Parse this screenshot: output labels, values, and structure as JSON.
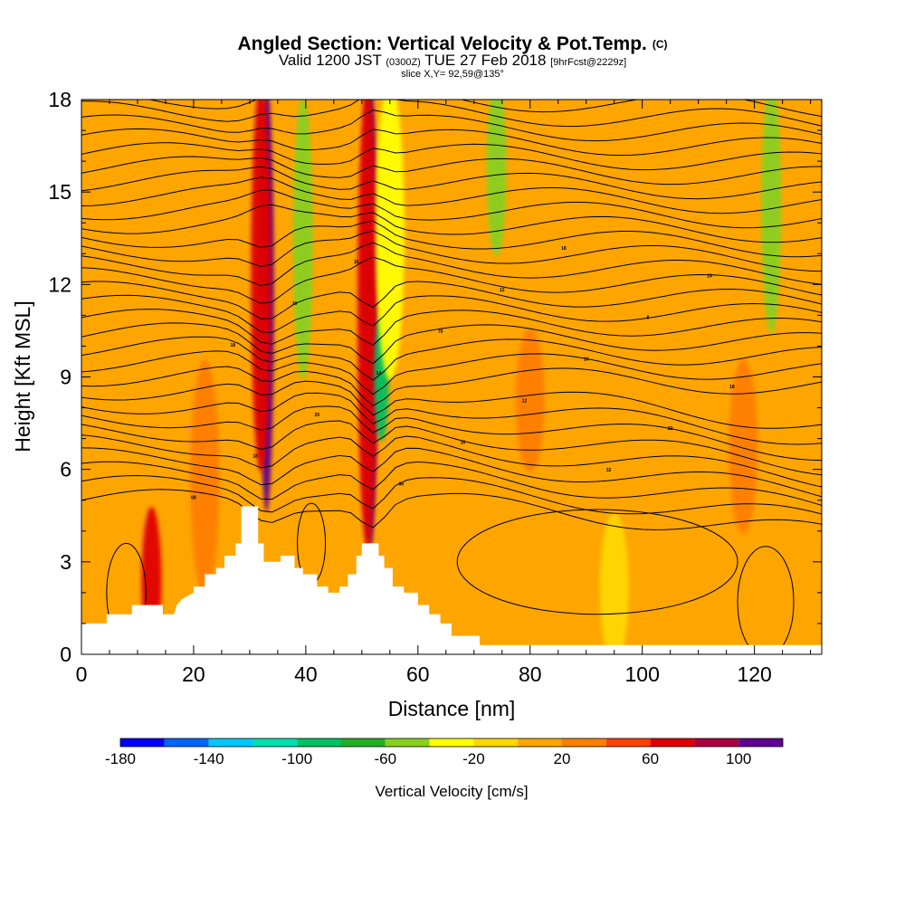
{
  "header": {
    "title": "Angled Section: Vertical Velocity & Pot.Temp.",
    "title_unit": "(C)",
    "valid_prefix": "Valid 1200 JST",
    "valid_utc": "(0300Z)",
    "valid_date": "TUE 27 Feb 2018",
    "forecast_info": "[9hrFcst@2229z]",
    "slice_info": "slice X,Y= 92,59@135°"
  },
  "chart_data": {
    "type": "heatmap",
    "xlabel": "Distance [nm]",
    "ylabel": "Height [Kft MSL]",
    "xlim": [
      0,
      132
    ],
    "ylim": [
      0,
      18
    ],
    "x_ticks": [
      0,
      20,
      40,
      60,
      80,
      100,
      120
    ],
    "y_ticks": [
      0,
      3,
      6,
      9,
      12,
      15,
      18
    ],
    "background_fill": "#ffa500",
    "colorbar": {
      "title": "Vertical Velocity [cm/s]",
      "tick_labels": [
        "-180",
        "-140",
        "-100",
        "-60",
        "-20",
        "20",
        "60",
        "100"
      ],
      "tick_values": [
        -180,
        -140,
        -100,
        -60,
        -20,
        20,
        60,
        100
      ],
      "bounds": [
        -180,
        -160,
        -140,
        -120,
        -100,
        -80,
        -60,
        -40,
        -20,
        0,
        20,
        40,
        60,
        80,
        100,
        120
      ],
      "colors": [
        "#0000ff",
        "#0064ff",
        "#00c8ff",
        "#00e0b0",
        "#00c060",
        "#22b022",
        "#88d020",
        "#ffff00",
        "#ffd700",
        "#ffa500",
        "#ff7f00",
        "#ff3f00",
        "#e00000",
        "#aa0040",
        "#600090"
      ]
    },
    "velocity_features": [
      {
        "x": 33,
        "ybot": 5.2,
        "ytop": 18,
        "value": 110
      },
      {
        "x": 32,
        "ybot": 6.5,
        "ytop": 18,
        "value": 70
      },
      {
        "x": 51.5,
        "ybot": 4.0,
        "ytop": 18,
        "value": 110
      },
      {
        "x": 51,
        "ybot": 4.0,
        "ytop": 18,
        "value": 70
      },
      {
        "x": 39.5,
        "ybot": 9.5,
        "ytop": 17.5,
        "value": -50
      },
      {
        "x": 53.5,
        "ybot": 7.5,
        "ytop": 10.5,
        "value": -90
      },
      {
        "x": 55,
        "ybot": 9.5,
        "ytop": 18,
        "value": -30
      },
      {
        "x": 74,
        "ybot": 13.5,
        "ytop": 18,
        "value": -50
      },
      {
        "x": 123,
        "ybot": 11.0,
        "ytop": 18,
        "value": -50
      },
      {
        "x": 12.5,
        "ybot": 0.5,
        "ytop": 4.2,
        "value": 70
      },
      {
        "x": 22,
        "ybot": 2.5,
        "ytop": 9.0,
        "value": 30
      },
      {
        "x": 80,
        "ybot": 6.5,
        "ytop": 10.0,
        "value": 30
      },
      {
        "x": 118,
        "ybot": 4.5,
        "ytop": 9.0,
        "value": 30
      },
      {
        "x": 95,
        "ybot": 0.3,
        "ytop": 4.0,
        "value": -10
      }
    ],
    "potential_temperature_isotherms": {
      "label_values": [
        "68",
        "66",
        "32",
        "18",
        "16",
        "22",
        "20",
        "12",
        "18",
        "14",
        "16",
        "18",
        "70",
        "8",
        "10",
        "12",
        "14",
        "16",
        "18"
      ],
      "count": 30
    },
    "terrain_profile": [
      [
        0,
        1.0
      ],
      [
        4.5,
        1.0
      ],
      [
        4.5,
        1.3
      ],
      [
        9,
        1.3
      ],
      [
        9,
        1.6
      ],
      [
        14.5,
        1.6
      ],
      [
        14.5,
        1.3
      ],
      [
        16.5,
        1.3
      ],
      [
        17,
        1.6
      ],
      [
        18,
        1.8
      ],
      [
        20,
        2.0
      ],
      [
        20,
        2.2
      ],
      [
        22,
        2.2
      ],
      [
        22,
        2.6
      ],
      [
        24,
        2.6
      ],
      [
        24,
        2.8
      ],
      [
        25.5,
        2.8
      ],
      [
        25.5,
        3.2
      ],
      [
        27.5,
        3.2
      ],
      [
        27.5,
        3.6
      ],
      [
        28.5,
        3.6
      ],
      [
        28.5,
        4.8
      ],
      [
        31.5,
        4.8
      ],
      [
        31.5,
        3.6
      ],
      [
        32.5,
        3.6
      ],
      [
        32.5,
        3.0
      ],
      [
        35.5,
        3.0
      ],
      [
        35.5,
        3.2
      ],
      [
        38,
        3.2
      ],
      [
        38,
        2.8
      ],
      [
        39.5,
        2.8
      ],
      [
        39.5,
        2.6
      ],
      [
        42,
        2.6
      ],
      [
        42,
        2.2
      ],
      [
        44,
        2.2
      ],
      [
        44,
        2.0
      ],
      [
        46,
        2.0
      ],
      [
        46,
        2.2
      ],
      [
        47.5,
        2.2
      ],
      [
        47.5,
        2.6
      ],
      [
        49,
        2.6
      ],
      [
        49,
        3.2
      ],
      [
        50,
        3.2
      ],
      [
        50,
        3.6
      ],
      [
        53,
        3.6
      ],
      [
        53,
        3.2
      ],
      [
        54,
        3.2
      ],
      [
        54,
        2.8
      ],
      [
        55.5,
        2.8
      ],
      [
        55.5,
        2.2
      ],
      [
        57.5,
        2.2
      ],
      [
        57.5,
        2.0
      ],
      [
        60,
        2.0
      ],
      [
        60,
        1.6
      ],
      [
        62,
        1.6
      ],
      [
        62,
        1.3
      ],
      [
        64,
        1.3
      ],
      [
        64,
        1.0
      ],
      [
        66,
        1.0
      ],
      [
        66,
        0.6
      ],
      [
        71,
        0.6
      ],
      [
        71,
        0.3
      ],
      [
        132,
        0.3
      ]
    ]
  }
}
